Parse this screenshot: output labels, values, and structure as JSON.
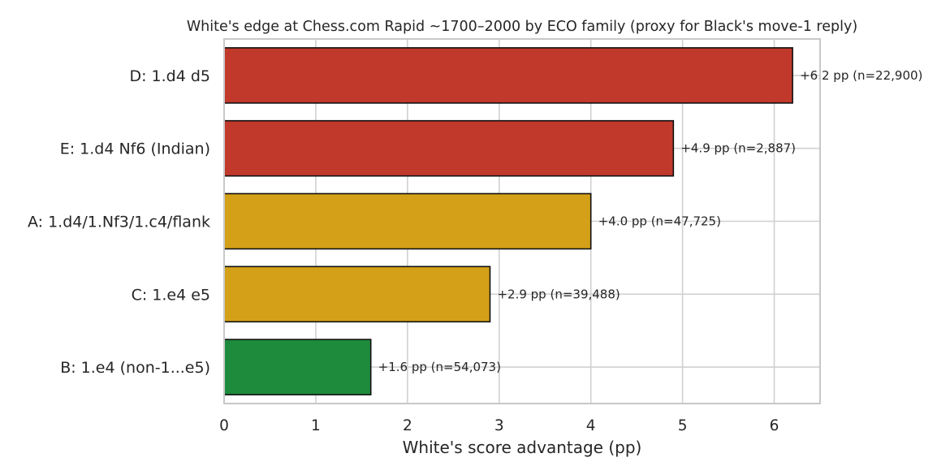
{
  "chart_data": {
    "type": "bar",
    "orientation": "horizontal",
    "title": "White's edge at Chess.com Rapid ~1700–2000 by ECO family (proxy for Black's move-1 reply)",
    "xlabel": "White's score advantage (pp)",
    "ylabel": "",
    "xlim": [
      0,
      6.5
    ],
    "xticks": [
      "0",
      "1",
      "2",
      "3",
      "4",
      "5",
      "6"
    ],
    "grid": true,
    "legend": "none",
    "categories": [
      "D: 1.d4 d5",
      "E: 1.d4 Nf6 (Indian)",
      "A: 1.d4/1.Nf3/1.c4/flank",
      "C: 1.e4 e5",
      "B: 1.e4 (non-1...e5)"
    ],
    "values": [
      6.2,
      4.9,
      4.0,
      2.9,
      1.6
    ],
    "data_labels": [
      "+6.2 pp  (n=22,900)",
      "+4.9 pp  (n=2,887)",
      "+4.0 pp  (n=47,725)",
      "+2.9 pp  (n=39,488)",
      "+1.6 pp  (n=54,073)"
    ],
    "colors": [
      "#c0392b",
      "#c0392b",
      "#d4a017",
      "#d4a017",
      "#1e8b3c"
    ]
  }
}
